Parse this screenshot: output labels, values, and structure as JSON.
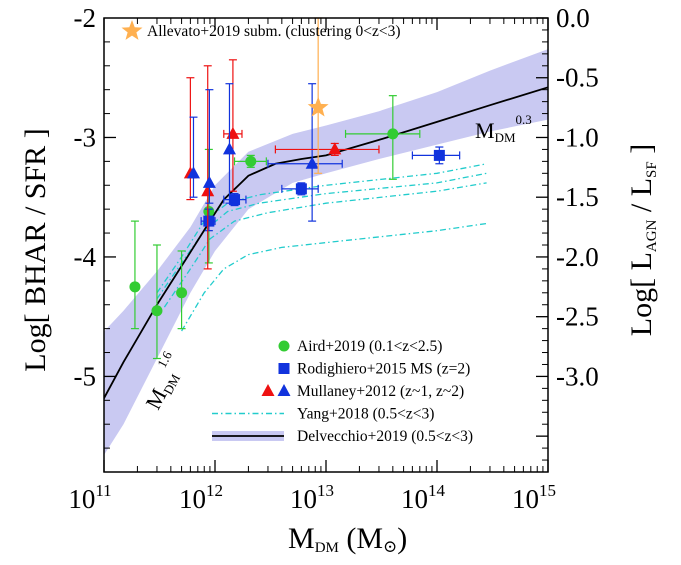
{
  "chart_data": {
    "type": "scatter",
    "xscale": "log",
    "xlim": [
      100000000000.0,
      1000000000000000.0
    ],
    "ylim": [
      -5.8,
      -2.0
    ],
    "ylim_right": [
      -3.8,
      0.0
    ],
    "xlabel": {
      "main": "M",
      "sub": "DM",
      "unit_open": " (M",
      "unit_symbol": "⊙",
      "unit_close": ")"
    },
    "ylabel_left": "Log[ BHAR / SFR ]",
    "ylabel_right": {
      "prefix": "Log[ L",
      "sub1": "AGN",
      "mid": " / L",
      "sub2": "SF",
      "suffix": " ]"
    },
    "x_ticks": [
      {
        "value": 100000000000.0,
        "base": "10",
        "exp": "11"
      },
      {
        "value": 1000000000000.0,
        "base": "10",
        "exp": "12"
      },
      {
        "value": 10000000000000.0,
        "base": "10",
        "exp": "13"
      },
      {
        "value": 100000000000000.0,
        "base": "10",
        "exp": "14"
      },
      {
        "value": 1000000000000000.0,
        "base": "10",
        "exp": "15"
      }
    ],
    "y_ticks_left": [
      {
        "value": -5,
        "label": "-5"
      },
      {
        "value": -4,
        "label": "-4"
      },
      {
        "value": -3,
        "label": "-3"
      },
      {
        "value": -2,
        "label": "-2"
      }
    ],
    "y_ticks_right": [
      {
        "value": -3.0,
        "label": "-3.0"
      },
      {
        "value": -2.5,
        "label": "-2.5"
      },
      {
        "value": -2.0,
        "label": "-2.0"
      },
      {
        "value": -1.5,
        "label": "-1.5"
      },
      {
        "value": -1.0,
        "label": "-1.0"
      },
      {
        "value": -0.5,
        "label": "-0.5"
      },
      {
        "value": 0.0,
        "label": "0.0"
      }
    ],
    "colors": {
      "aird": "#33cc33",
      "rodighiero": "#1133dd",
      "mullaney_red": "#ee1111",
      "mullaney_blue": "#1133dd",
      "yang": "#22cccc",
      "delvecchio_line": "#000000",
      "delvecchio_band": "#c9c9f2",
      "allevato": "#ffb050"
    },
    "annotation": {
      "label": "Allevato+2019 subm. (clustering 0<z<3)"
    },
    "slope_labels": [
      {
        "base": "M",
        "sub": "DM",
        "sup": "1.6"
      },
      {
        "base": "M",
        "sub": "DM",
        "sup": "0.3"
      }
    ],
    "series": [
      {
        "name": "Aird+2019 (0.1<z<2.5)",
        "marker": "circle",
        "color": "#33cc33",
        "points": [
          {
            "x": 190000000000.0,
            "y": -4.25,
            "ylo": -4.6,
            "yhi": -3.7
          },
          {
            "x": 300000000000.0,
            "y": -4.45,
            "ylo": -4.85,
            "yhi": -3.9
          },
          {
            "x": 500000000000.0,
            "y": -4.3,
            "ylo": -4.6,
            "yhi": -3.95
          },
          {
            "x": 880000000000.0,
            "y": -3.62,
            "ylo": -4.05,
            "yhi": -3.1
          },
          {
            "x": 2100000000000.0,
            "y": -3.2,
            "ylo": -3.25,
            "yhi": -3.15,
            "xlo": 1500000000000.0,
            "xhi": 2900000000000.0
          },
          {
            "x": 40000000000000.0,
            "y": -2.97,
            "ylo": -3.35,
            "yhi": -2.65,
            "xlo": 15000000000000.0,
            "xhi": 70000000000000.0
          }
        ]
      },
      {
        "name": "Rodighiero+2015 MS (z=2)",
        "marker": "square",
        "color": "#1133dd",
        "points": [
          {
            "x": 880000000000.0,
            "y": -3.7,
            "ylo": -3.78,
            "yhi": -3.6,
            "xlo": 750000000000.0,
            "xhi": 1000000000000.0
          },
          {
            "x": 1500000000000.0,
            "y": -3.52,
            "ylo": -3.57,
            "yhi": -3.47,
            "xlo": 1200000000000.0,
            "xhi": 1900000000000.0
          },
          {
            "x": 6000000000000.0,
            "y": -3.43,
            "ylo": -3.48,
            "yhi": -3.38,
            "xlo": 4000000000000.0,
            "xhi": 8500000000000.0
          },
          {
            "x": 105000000000000.0,
            "y": -3.15,
            "ylo": -3.22,
            "yhi": -3.08,
            "xlo": 60000000000000.0,
            "xhi": 160000000000000.0
          }
        ]
      },
      {
        "name": "Mullaney+2012 (z~1, z~2)",
        "marker": "triangle",
        "colors": [
          "#ee1111",
          "#1133dd"
        ],
        "points": [
          {
            "x": 600000000000.0,
            "y": -3.3,
            "ylo": -3.52,
            "yhi": -2.5,
            "color": "#ee1111"
          },
          {
            "x": 640000000000.0,
            "y": -3.3,
            "ylo": -3.5,
            "yhi": -2.83,
            "color": "#1133dd"
          },
          {
            "x": 860000000000.0,
            "y": -3.45,
            "ylo": -4.1,
            "yhi": -2.4,
            "color": "#ee1111"
          },
          {
            "x": 890000000000.0,
            "y": -3.38,
            "ylo": -3.55,
            "yhi": -2.6,
            "color": "#1133dd"
          },
          {
            "x": 1450000000000.0,
            "y": -2.97,
            "ylo": -3.45,
            "yhi": -2.35,
            "xlo": 1200000000000.0,
            "xhi": 1750000000000.0,
            "color": "#ee1111"
          },
          {
            "x": 1350000000000.0,
            "y": -3.1,
            "ylo": -3.55,
            "yhi": -2.55,
            "color": "#1133dd"
          },
          {
            "x": 7500000000000.0,
            "y": -3.22,
            "ylo": -3.7,
            "yhi": -2.55,
            "xlo": 3000000000000.0,
            "xhi": 14000000000000.0,
            "color": "#1133dd"
          },
          {
            "x": 12000000000000.0,
            "y": -3.1,
            "ylo": -3.15,
            "yhi": -3.05,
            "xlo": 3500000000000.0,
            "xhi": 30000000000000.0,
            "color": "#ee1111"
          }
        ]
      },
      {
        "name": "Yang+2018 (0.5<z<3)",
        "marker": "none",
        "color": "#22cccc",
        "lines": [
          {
            "x": [
              300000000000.0,
              500000000000.0,
              800000000000.0,
              1300000000000.0,
              2500000000000.0,
              10000000000000.0,
              100000000000000.0,
              280000000000000.0
            ],
            "y": [
              -4.3,
              -4.0,
              -3.7,
              -3.55,
              -3.48,
              -3.4,
              -3.3,
              -3.22
            ]
          },
          {
            "x": [
              300000000000.0,
              500000000000.0,
              800000000000.0,
              1300000000000.0,
              2500000000000.0,
              10000000000000.0,
              100000000000000.0,
              280000000000000.0
            ],
            "y": [
              -4.35,
              -4.05,
              -3.78,
              -3.62,
              -3.55,
              -3.47,
              -3.38,
              -3.3
            ]
          },
          {
            "x": [
              350000000000.0,
              600000000000.0,
              900000000000.0,
              1500000000000.0,
              3000000000000.0,
              10000000000000.0,
              100000000000000.0,
              280000000000000.0
            ],
            "y": [
              -4.42,
              -4.1,
              -3.85,
              -3.7,
              -3.63,
              -3.55,
              -3.45,
              -3.38
            ]
          },
          {
            "x": [
              500000000000.0,
              800000000000.0,
              1200000000000.0,
              2000000000000.0,
              4000000000000.0,
              10000000000000.0,
              100000000000000.0,
              280000000000000.0
            ],
            "y": [
              -4.62,
              -4.3,
              -4.1,
              -3.98,
              -3.92,
              -3.88,
              -3.78,
              -3.72
            ]
          }
        ]
      },
      {
        "name": "Delvecchio+2019 (0.5<z<3)",
        "marker": "none",
        "color": "#000000",
        "line": {
          "x": [
            80000000000.0,
            150000000000.0,
            300000000000.0,
            600000000000.0,
            900000000000.0,
            1200000000000.0,
            2000000000000.0,
            3500000000000.0,
            6000000000000.0,
            10000000000000.0,
            30000000000000.0,
            100000000000000.0,
            300000000000000.0,
            1000000000000000.0
          ],
          "y": [
            -5.35,
            -4.88,
            -4.4,
            -3.96,
            -3.7,
            -3.52,
            -3.32,
            -3.22,
            -3.18,
            -3.15,
            -3.02,
            -2.87,
            -2.73,
            -2.58
          ]
        },
        "band": {
          "x": [
            80000000000.0,
            150000000000.0,
            300000000000.0,
            600000000000.0,
            1000000000000.0,
            2000000000000.0,
            5000000000000.0,
            10000000000000.0,
            30000000000000.0,
            100000000000000.0,
            300000000000000.0,
            1000000000000000.0
          ],
          "upper": [
            -4.72,
            -4.45,
            -4.12,
            -3.75,
            -3.4,
            -3.12,
            -2.97,
            -2.9,
            -2.78,
            -2.62,
            -2.44,
            -2.26
          ],
          "lower": [
            -5.8,
            -5.4,
            -4.85,
            -4.3,
            -3.95,
            -3.6,
            -3.38,
            -3.3,
            -3.18,
            -3.06,
            -2.95,
            -2.85
          ]
        }
      },
      {
        "name": "Allevato+2019 subm. (clustering 0<z<3)",
        "marker": "star",
        "color": "#ffb050",
        "points": [
          {
            "x": 8500000000000.0,
            "y": -2.75,
            "ylo": -3.3,
            "yhi": -2.0
          }
        ]
      }
    ],
    "legend": {
      "placement": "bottom-right",
      "entries": [
        {
          "marker": "circle",
          "colors": [
            "#33cc33"
          ],
          "label": "Aird+2019 (0.1<z<2.5)"
        },
        {
          "marker": "square",
          "colors": [
            "#1133dd"
          ],
          "label": "Rodighiero+2015 MS (z=2)"
        },
        {
          "marker": "triangle",
          "colors": [
            "#ee1111",
            "#1133dd"
          ],
          "label": "Mullaney+2012 (z~1, z~2)"
        },
        {
          "marker": "dashdot",
          "colors": [
            "#22cccc"
          ],
          "label": "Yang+2018 (0.5<z<3)"
        },
        {
          "marker": "band-line",
          "colors": [
            "#c9c9f2",
            "#000000"
          ],
          "label": "Delvecchio+2019 (0.5<z<3)"
        }
      ]
    }
  }
}
